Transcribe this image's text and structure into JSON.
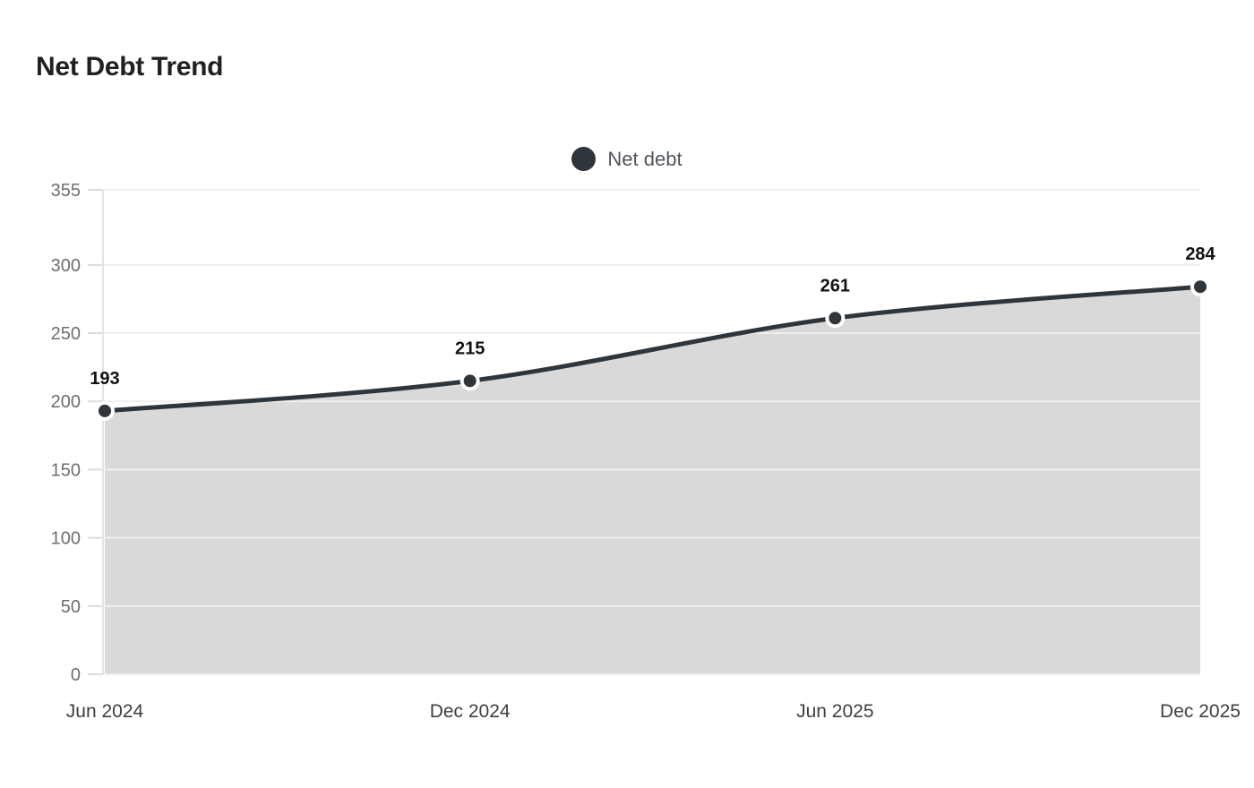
{
  "header": {
    "title": "Net Debt Trend"
  },
  "legend": {
    "label": "Net debt"
  },
  "chart_data": {
    "type": "area",
    "title": "Net Debt Trend",
    "categories": [
      "Jun 2024",
      "Dec 2024",
      "Jun 2025",
      "Dec 2025"
    ],
    "series": [
      {
        "name": "Net debt",
        "values": [
          193,
          215,
          261,
          284
        ]
      }
    ],
    "xlabel": "",
    "ylabel": "",
    "ylim": [
      0,
      355
    ],
    "yticks": [
      0,
      50,
      100,
      150,
      200,
      250,
      300,
      355
    ],
    "grid": true,
    "smooth_line": true,
    "show_data_labels": true,
    "legend_position": "top-center"
  },
  "colors": {
    "background": "#ffffff",
    "line": "#2e353b",
    "marker_fill": "#2e353b",
    "marker_ring": "#ffffff",
    "area_fill": "#d9d9d9",
    "gridline": "#efefef",
    "tick": "#dcdcdc",
    "axis_line": "#e3e3e3",
    "y_tick_label": "#6e6e6e",
    "x_tick_label": "#3f3f3f",
    "data_label": "#121212",
    "title": "#202020",
    "legend_text": "#50565c"
  }
}
